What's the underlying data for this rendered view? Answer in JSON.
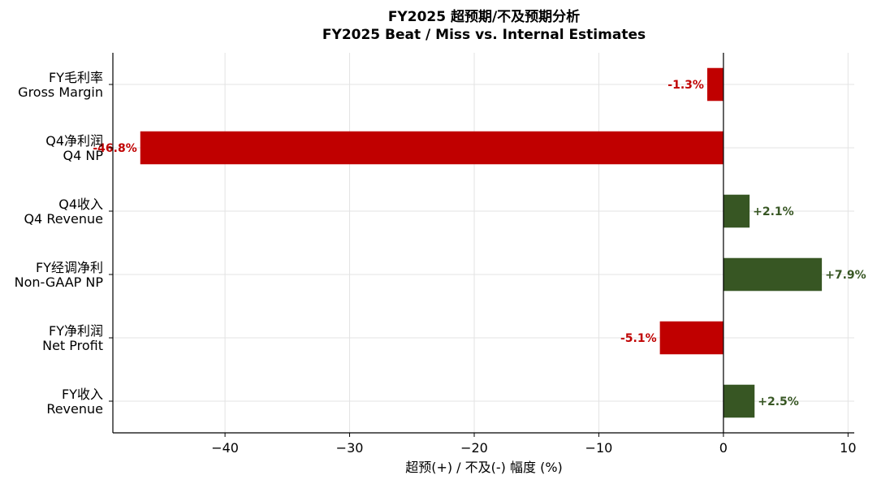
{
  "chart_data": {
    "type": "bar",
    "orientation": "horizontal",
    "title": "FY2025 超预期/不及预期分析",
    "subtitle": "FY2025 Beat / Miss vs. Internal Estimates",
    "xlabel": "超预(+) / 不及(-) 幅度 (%)",
    "ylabel": "",
    "xlim": [
      -49,
      10.5
    ],
    "xticks": [
      -40,
      -30,
      -20,
      -10,
      0,
      10
    ],
    "xtick_labels": [
      "−40",
      "−30",
      "−20",
      "−10",
      "0",
      "10"
    ],
    "grid": true,
    "legend": "none",
    "categories": [
      {
        "cn": "FY毛利率",
        "en": "Gross Margin"
      },
      {
        "cn": "Q4净利润",
        "en": "Q4 NP"
      },
      {
        "cn": "Q4收入",
        "en": "Q4 Revenue"
      },
      {
        "cn": "FY经调净利",
        "en": "Non-GAAP NP"
      },
      {
        "cn": "FY净利润",
        "en": "Net Profit"
      },
      {
        "cn": "FY收入",
        "en": "Revenue"
      }
    ],
    "values": [
      -1.3,
      -46.8,
      2.1,
      7.9,
      -5.1,
      2.5
    ],
    "data_labels": [
      "-1.3%",
      "-46.8%",
      "+2.1%",
      "+7.9%",
      "-5.1%",
      "+2.5%"
    ],
    "colors": {
      "positive": "#375623",
      "negative": "#c00000"
    }
  }
}
